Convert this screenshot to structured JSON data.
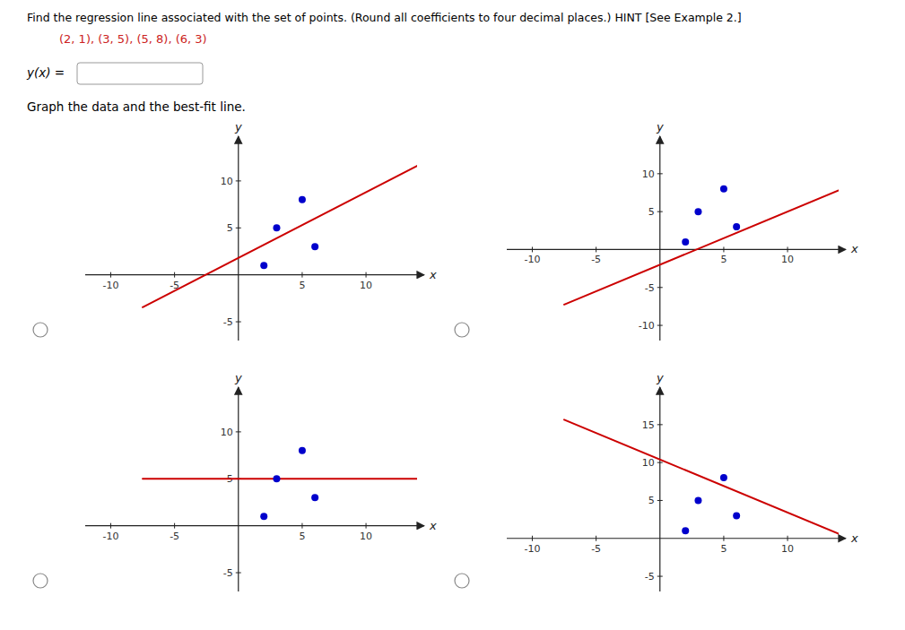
{
  "chart_data": [
    {
      "type": "scatter",
      "title": "Find the regression line associated with the set of points. (Round all coefficients to four decimal places.) HINT [See Example 2.]",
      "subtitle": "(2, 1), (3, 5), (5, 8), (6, 3)",
      "annotations": [
        "y(x) =",
        "Graph the data and the best-fit line."
      ],
      "x_label": "x",
      "y_label": "y",
      "xlim": [
        -12,
        14
      ],
      "ylim": [
        -7,
        14
      ],
      "xticks": [
        -10,
        -5,
        5,
        10
      ],
      "yticks": [
        -5,
        5,
        10
      ],
      "series": [
        {
          "type": "scatter",
          "color": "#0000cc",
          "x": [
            2,
            3,
            5,
            6
          ],
          "values": [
            1,
            5,
            8,
            3
          ]
        },
        {
          "type": "line",
          "color": "#cc0000",
          "x": [
            -7.5,
            14
          ],
          "values": [
            -3.45,
            11.6
          ]
        }
      ]
    },
    {
      "type": "scatter",
      "x_label": "x",
      "y_label": "y",
      "xlim": [
        -12,
        14
      ],
      "ylim": [
        -12,
        14
      ],
      "xticks": [
        -10,
        -5,
        5,
        10
      ],
      "yticks": [
        -10,
        -5,
        5,
        10
      ],
      "series": [
        {
          "type": "scatter",
          "color": "#0000cc",
          "x": [
            2,
            3,
            5,
            6
          ],
          "values": [
            1,
            5,
            8,
            3
          ]
        },
        {
          "type": "line",
          "color": "#cc0000",
          "x": [
            -7.5,
            14
          ],
          "values": [
            -7.25,
            7.8
          ]
        }
      ]
    },
    {
      "type": "scatter",
      "x_label": "x",
      "y_label": "y",
      "xlim": [
        -12,
        14
      ],
      "ylim": [
        -7,
        14
      ],
      "xticks": [
        -10,
        -5,
        5,
        10
      ],
      "yticks": [
        -5,
        5,
        10
      ],
      "series": [
        {
          "type": "scatter",
          "color": "#0000cc",
          "x": [
            2,
            3,
            5,
            6
          ],
          "values": [
            1,
            5,
            8,
            3
          ]
        },
        {
          "type": "line",
          "color": "#cc0000",
          "x": [
            -7.5,
            14
          ],
          "values": [
            5,
            5
          ]
        }
      ]
    },
    {
      "type": "scatter",
      "x_label": "x",
      "y_label": "y",
      "xlim": [
        -12,
        14
      ],
      "ylim": [
        -7,
        19
      ],
      "xticks": [
        -10,
        -5,
        5,
        10
      ],
      "yticks": [
        -5,
        5,
        10,
        15
      ],
      "series": [
        {
          "type": "scatter",
          "color": "#0000cc",
          "x": [
            2,
            3,
            5,
            6
          ],
          "values": [
            1,
            5,
            8,
            3
          ]
        },
        {
          "type": "line",
          "color": "#cc0000",
          "x": [
            -7.5,
            14
          ],
          "values": [
            15.65,
            0.6
          ]
        }
      ]
    }
  ]
}
